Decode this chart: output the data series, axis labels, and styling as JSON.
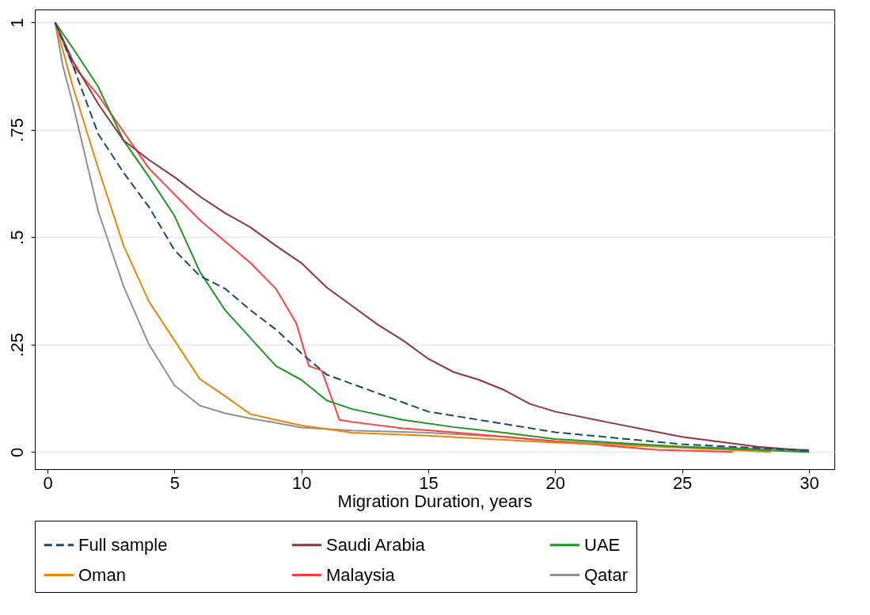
{
  "chart_data": {
    "type": "line",
    "xlabel": "Migration Duration, years",
    "xlim": [
      -0.5,
      31
    ],
    "xticks": [
      0,
      5,
      10,
      15,
      20,
      25,
      30
    ],
    "ylim": [
      -0.04,
      1.03
    ],
    "yticks": [
      {
        "value": 0,
        "label": "0"
      },
      {
        "value": 0.25,
        "label": ".25"
      },
      {
        "value": 0.5,
        "label": ".5"
      },
      {
        "value": 0.75,
        "label": ".75"
      },
      {
        "value": 1,
        "label": "1"
      }
    ],
    "grid": "y",
    "legend": "bottom",
    "series": [
      {
        "name": "Full sample",
        "color": "#1a476f",
        "line_style": "dashed",
        "x": [
          0.3,
          1,
          2,
          3,
          4,
          5,
          6,
          7,
          8,
          9,
          10,
          11,
          15,
          20,
          25,
          30
        ],
        "values": [
          1,
          0.9,
          0.74,
          0.65,
          0.57,
          0.47,
          0.41,
          0.38,
          0.33,
          0.285,
          0.23,
          0.18,
          0.094,
          0.046,
          0.018,
          0.003
        ]
      },
      {
        "name": "Saudi Arabia",
        "color": "#90353b",
        "line_style": "solid",
        "x": [
          0.3,
          1,
          2,
          3,
          4,
          5,
          6,
          7,
          8,
          9,
          10,
          11,
          12,
          13,
          14,
          15,
          16,
          17,
          18,
          19,
          20,
          22,
          25,
          28,
          30
        ],
        "values": [
          1,
          0.91,
          0.81,
          0.725,
          0.68,
          0.64,
          0.595,
          0.556,
          0.523,
          0.48,
          0.44,
          0.383,
          0.34,
          0.297,
          0.26,
          0.217,
          0.186,
          0.168,
          0.144,
          0.112,
          0.094,
          0.07,
          0.035,
          0.012,
          0.003
        ]
      },
      {
        "name": "UAE",
        "color": "#1f961f",
        "line_style": "solid",
        "x": [
          0.3,
          1,
          2,
          3,
          4,
          5,
          6,
          7,
          8,
          9,
          10,
          11,
          12,
          14,
          16,
          18,
          20,
          25,
          30
        ],
        "values": [
          1,
          0.94,
          0.85,
          0.725,
          0.64,
          0.55,
          0.42,
          0.33,
          0.265,
          0.2,
          0.168,
          0.12,
          0.1,
          0.075,
          0.058,
          0.045,
          0.03,
          0.012,
          0
        ]
      },
      {
        "name": "Oman",
        "color": "#e8860c",
        "line_style": "solid",
        "x": [
          0.3,
          1,
          2,
          3,
          4,
          5,
          6,
          7,
          8,
          9,
          10,
          12,
          15,
          20,
          25,
          28.5
        ],
        "values": [
          1,
          0.85,
          0.66,
          0.48,
          0.35,
          0.26,
          0.17,
          0.13,
          0.088,
          0.075,
          0.062,
          0.045,
          0.038,
          0.022,
          0.01,
          0
        ]
      },
      {
        "name": "Malaysia",
        "color": "#ff4040",
        "line_style": "solid",
        "x": [
          0.3,
          1,
          2,
          3,
          4,
          5,
          6,
          7,
          8,
          9,
          9.8,
          10.3,
          10.8,
          11.2,
          11.5,
          12,
          14,
          16,
          20,
          24,
          27
        ],
        "values": [
          1,
          0.9,
          0.83,
          0.745,
          0.66,
          0.6,
          0.54,
          0.49,
          0.44,
          0.38,
          0.3,
          0.2,
          0.19,
          0.125,
          0.075,
          0.07,
          0.055,
          0.046,
          0.025,
          0.005,
          0
        ]
      },
      {
        "name": "Qatar",
        "color": "#909090",
        "line_style": "solid",
        "x": [
          0.3,
          0.6,
          1,
          2,
          3,
          4,
          5,
          6,
          7,
          8,
          9,
          10,
          12,
          15,
          18,
          20,
          25,
          30
        ],
        "values": [
          1,
          0.9,
          0.81,
          0.56,
          0.385,
          0.25,
          0.155,
          0.108,
          0.09,
          0.078,
          0.068,
          0.057,
          0.05,
          0.045,
          0.035,
          0.025,
          0.012,
          0.005
        ]
      }
    ]
  }
}
